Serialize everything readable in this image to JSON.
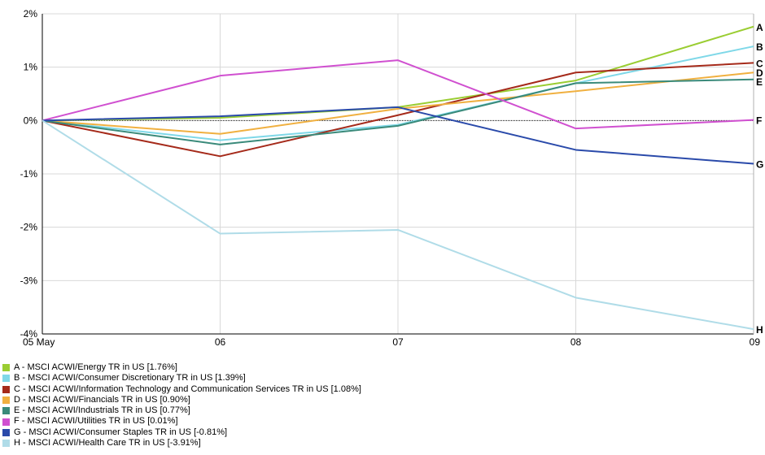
{
  "chart_data": {
    "type": "line",
    "x": [
      "05 May",
      "06",
      "07",
      "08",
      "09"
    ],
    "yticks": [
      "2%",
      "1%",
      "0%",
      "-1%",
      "-2%",
      "-3%",
      "-4%"
    ],
    "ylim": [
      -4,
      2
    ],
    "grid": true,
    "zero_line": true,
    "series": [
      {
        "letter": "A",
        "name": "A - MSCI ACWI/Energy TR in US [1.76%]",
        "color": "#9acd32",
        "values": [
          0,
          0.05,
          0.25,
          0.75,
          1.76
        ]
      },
      {
        "letter": "B",
        "name": "B - MSCI ACWI/Consumer Discretionary TR in US [1.39%]",
        "color": "#7fd8e8",
        "values": [
          0,
          -0.37,
          -0.08,
          0.7,
          1.39
        ]
      },
      {
        "letter": "C",
        "name": "C - MSCI ACWI/Information Technology and Communication Services TR in US [1.08%]",
        "color": "#a52a1a",
        "values": [
          0,
          -0.67,
          0.1,
          0.9,
          1.08
        ]
      },
      {
        "letter": "D",
        "name": "D - MSCI ACWI/Financials TR in US [0.90%]",
        "color": "#f0b040",
        "values": [
          0,
          -0.25,
          0.22,
          0.55,
          0.9
        ]
      },
      {
        "letter": "E",
        "name": "E - MSCI ACWI/Industrials TR in US [0.77%]",
        "color": "#3a8a7a",
        "values": [
          0,
          -0.45,
          -0.1,
          0.7,
          0.77
        ]
      },
      {
        "letter": "F",
        "name": "F - MSCI ACWI/Utilities TR in US [0.01%]",
        "color": "#d050d0",
        "values": [
          0,
          0.84,
          1.13,
          -0.15,
          0.01
        ]
      },
      {
        "letter": "G",
        "name": "G - MSCI ACWI/Consumer Staples TR in US [-0.81%]",
        "color": "#2a4aaa",
        "values": [
          0,
          0.08,
          0.25,
          -0.55,
          -0.81
        ]
      },
      {
        "letter": "H",
        "name": "H - MSCI ACWI/Health Care TR in US [-3.91%]",
        "color": "#b0dce8",
        "values": [
          0,
          -2.12,
          -2.05,
          -3.32,
          -3.91
        ]
      }
    ]
  }
}
